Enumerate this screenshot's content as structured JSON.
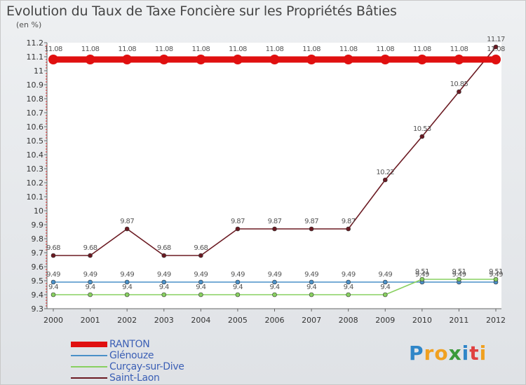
{
  "header": {
    "title": "Evolution du Taux de Taxe Foncière sur les Propriétés Bâties",
    "unit": "(en %)"
  },
  "chart_data": {
    "type": "line",
    "title": "Evolution du Taux de Taxe Foncière sur les Propriétés Bâties",
    "ylabel": "(en %)",
    "xlabel": "",
    "x": [
      "2000",
      "2001",
      "2002",
      "2003",
      "2004",
      "2005",
      "2006",
      "2007",
      "2008",
      "2009",
      "2010",
      "2011",
      "2012"
    ],
    "ylim": [
      9.3,
      11.2
    ],
    "yticks": [
      "9.3",
      "9.4",
      "9.5",
      "9.6",
      "9.7",
      "9.8",
      "9.9",
      "10",
      "10.1",
      "10.2",
      "10.3",
      "10.4",
      "10.5",
      "10.6",
      "10.7",
      "10.8",
      "10.9",
      "11",
      "11.1",
      "11.2"
    ],
    "grid": false,
    "legend_position": "bottom-left",
    "series": [
      {
        "name": "RANTON",
        "color": "#e01010",
        "values": [
          11.08,
          11.08,
          11.08,
          11.08,
          11.08,
          11.08,
          11.08,
          11.08,
          11.08,
          11.08,
          11.08,
          11.08,
          11.08
        ],
        "labels": [
          "11.08",
          "11.08",
          "11.08",
          "11.08",
          "11.08",
          "11.08",
          "11.08",
          "11.08",
          "11.08",
          "11.08",
          "11.08",
          "11.08",
          "11.08"
        ]
      },
      {
        "name": "Glénouze",
        "color": "#4a90c8",
        "values": [
          9.49,
          9.49,
          9.49,
          9.49,
          9.49,
          9.49,
          9.49,
          9.49,
          9.49,
          9.49,
          9.49,
          9.49,
          9.49
        ],
        "labels": [
          "9.49",
          "9.49",
          "9.49",
          "9.49",
          "9.49",
          "9.49",
          "9.49",
          "9.49",
          "9.49",
          "9.49",
          "9.49",
          "9.49",
          "9.49"
        ]
      },
      {
        "name": "Curçay-sur-Dive",
        "color": "#88d060",
        "values": [
          9.4,
          9.4,
          9.4,
          9.4,
          9.4,
          9.4,
          9.4,
          9.4,
          9.4,
          9.4,
          9.51,
          9.51,
          9.51
        ],
        "labels": [
          "9.4",
          "9.4",
          "9.4",
          "9.4",
          "9.4",
          "9.4",
          "9.4",
          "9.4",
          "9.4",
          "9.4",
          "9.51",
          "9.51",
          "9.51"
        ]
      },
      {
        "name": "Saint-Laon",
        "color": "#6b1a22",
        "values": [
          9.68,
          9.68,
          9.87,
          9.68,
          9.68,
          9.87,
          9.87,
          9.87,
          9.87,
          10.22,
          10.53,
          10.85,
          11.17
        ],
        "labels": [
          "9.68",
          "9.68",
          "9.87",
          "9.68",
          "9.68",
          "9.87",
          "9.87",
          "9.87",
          "9.87",
          "10.22",
          "10.53",
          "10.85",
          "11.17"
        ]
      }
    ]
  },
  "logo": {
    "letters": [
      "P",
      "r",
      "o",
      "x",
      "i",
      "t",
      "i"
    ],
    "colors": [
      "#2f86c8",
      "#f0a020",
      "#f0a020",
      "#3a9a3a",
      "#2f86c8",
      "#e04040",
      "#f0a020"
    ]
  }
}
